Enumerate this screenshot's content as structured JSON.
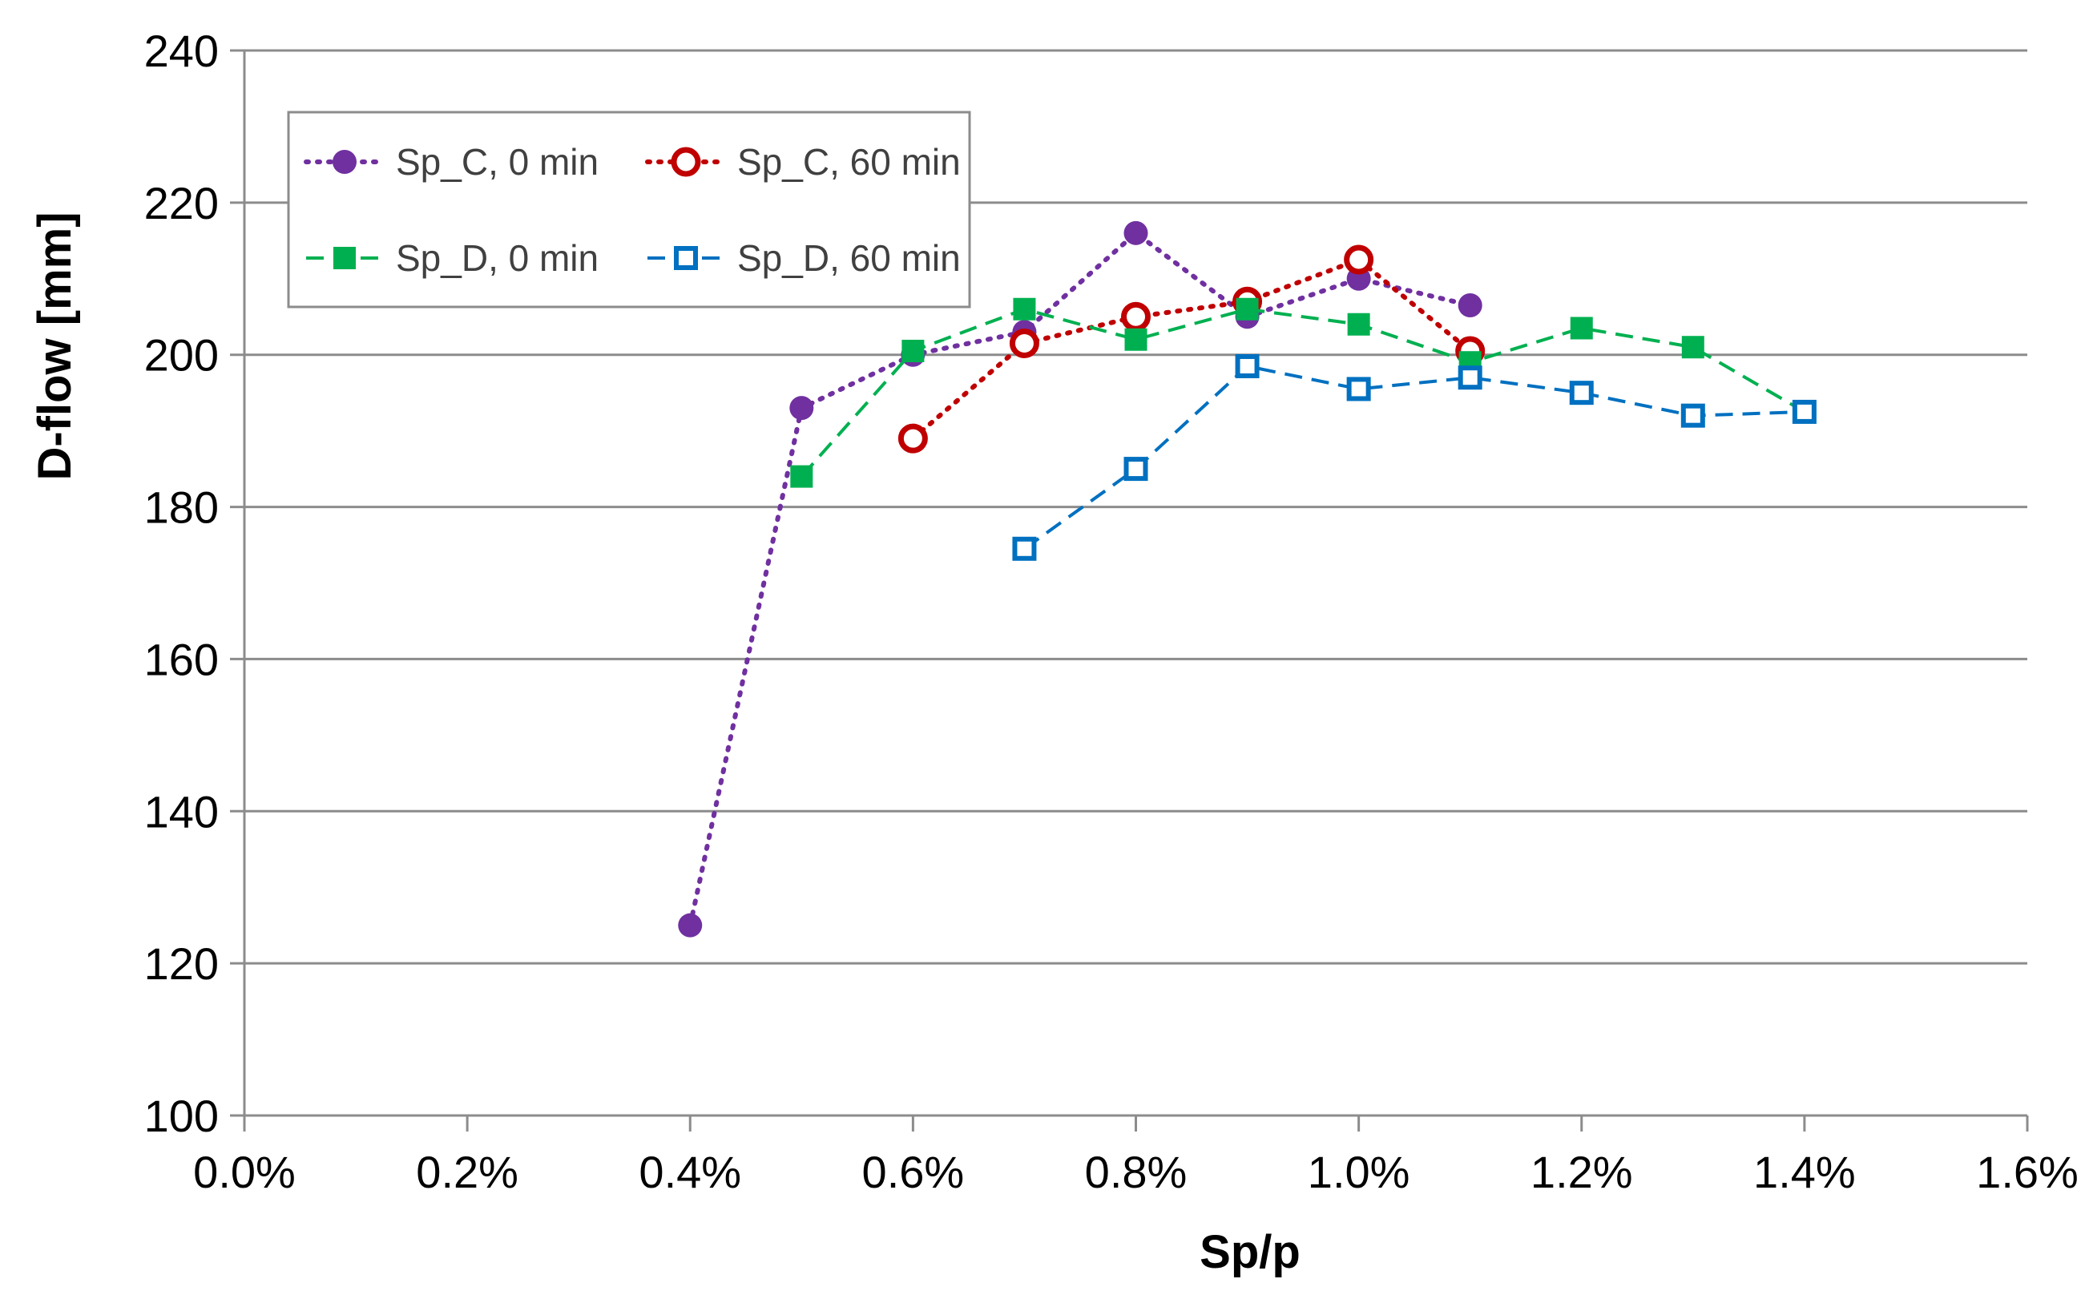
{
  "chart_data": {
    "type": "line",
    "title": "",
    "xlabel": "Sp/p",
    "ylabel": "D-flow [mm]",
    "xlim": [
      0.0,
      1.6
    ],
    "ylim": [
      100,
      240
    ],
    "x_ticks": [
      {
        "value": 0.0,
        "label": "0.0%"
      },
      {
        "value": 0.2,
        "label": "0.2%"
      },
      {
        "value": 0.4,
        "label": "0.4%"
      },
      {
        "value": 0.6,
        "label": "0.6%"
      },
      {
        "value": 0.8,
        "label": "0.8%"
      },
      {
        "value": 1.0,
        "label": "1.0%"
      },
      {
        "value": 1.2,
        "label": "1.2%"
      },
      {
        "value": 1.4,
        "label": "1.4%"
      },
      {
        "value": 1.6,
        "label": "1.6%"
      }
    ],
    "y_ticks": [
      {
        "value": 100,
        "label": "100"
      },
      {
        "value": 120,
        "label": "120"
      },
      {
        "value": 140,
        "label": "140"
      },
      {
        "value": 160,
        "label": "160"
      },
      {
        "value": 180,
        "label": "180"
      },
      {
        "value": 200,
        "label": "200"
      },
      {
        "value": 220,
        "label": "220"
      },
      {
        "value": 240,
        "label": "240"
      }
    ],
    "grid": "horizontal",
    "legend_position": "top-left",
    "series": [
      {
        "name": "Sp_C, 0 min",
        "color": "#7030A0",
        "line_style": "dotted",
        "marker": "filled-circle",
        "x": [
          0.4,
          0.5,
          0.6,
          0.7,
          0.8,
          0.9,
          1.0,
          1.1
        ],
        "y": [
          125,
          193,
          200,
          203,
          216,
          205,
          210,
          206.5
        ]
      },
      {
        "name": "Sp_C, 60 min",
        "color": "#C00000",
        "line_style": "dotted",
        "marker": "open-circle",
        "x": [
          0.6,
          0.7,
          0.8,
          0.9,
          1.0,
          1.1
        ],
        "y": [
          189,
          201.5,
          205,
          207,
          212.5,
          200.5
        ]
      },
      {
        "name": "Sp_D, 0 min",
        "color": "#00B050",
        "line_style": "dashed",
        "marker": "filled-square",
        "x": [
          0.5,
          0.6,
          0.7,
          0.8,
          0.9,
          1.0,
          1.1,
          1.2,
          1.3,
          1.4
        ],
        "y": [
          184,
          200.5,
          206,
          202,
          206,
          204,
          199,
          203.5,
          201,
          192.5
        ]
      },
      {
        "name": "Sp_D, 60 min",
        "color": "#0070C0",
        "line_style": "dashed",
        "marker": "open-square",
        "x": [
          0.7,
          0.8,
          0.9,
          1.0,
          1.1,
          1.2,
          1.3,
          1.4
        ],
        "y": [
          174.5,
          185,
          198.5,
          195.5,
          197,
          195,
          192,
          192.5
        ]
      }
    ]
  }
}
